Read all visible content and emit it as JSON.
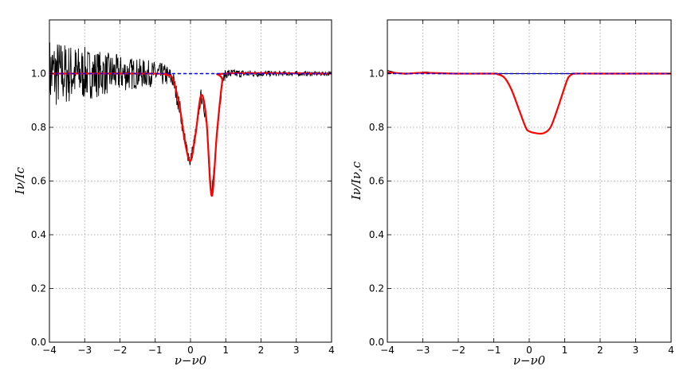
{
  "chart_data": [
    {
      "type": "line",
      "xlabel": "ν−ν0",
      "ylabel": "Iν/Ic",
      "xlim": [
        -4,
        4
      ],
      "ylim": [
        0.0,
        1.2
      ],
      "grid": true,
      "xticks": [
        "−4",
        "−3",
        "−2",
        "−1",
        "0",
        "1",
        "2",
        "3",
        "4"
      ],
      "yticks": [
        "0.0",
        "0.2",
        "0.4",
        "0.6",
        "0.8",
        "1.0"
      ],
      "series": [
        {
          "style": "noisy-black-data",
          "color": "#000000",
          "noise_model": "amplitude 0.13 at x=-4 decaying to 0.008 at x=4",
          "x": [
            -4.0,
            -3.5,
            -3.0,
            -2.5,
            -2.0,
            -1.5,
            -1.0,
            -0.7,
            -0.5,
            -0.3,
            -0.15,
            0.0,
            0.15,
            0.3,
            0.45,
            0.6,
            0.75,
            0.9,
            1.0,
            1.5,
            2.0,
            3.0,
            4.0
          ],
          "y": [
            1.0,
            1.0,
            1.0,
            1.0,
            1.0,
            1.0,
            1.0,
            0.995,
            0.98,
            0.87,
            0.74,
            0.67,
            0.78,
            0.92,
            0.83,
            0.535,
            0.78,
            0.97,
            1.0,
            1.0,
            1.0,
            1.0,
            1.0
          ]
        },
        {
          "style": "fit",
          "color": "#ff0000",
          "x": [
            -4.0,
            -1.0,
            -0.7,
            -0.5,
            -0.3,
            -0.15,
            0.0,
            0.15,
            0.3,
            0.45,
            0.6,
            0.75,
            0.9,
            1.0,
            4.0
          ],
          "y": [
            1.0,
            1.0,
            0.995,
            0.98,
            0.87,
            0.74,
            0.675,
            0.78,
            0.92,
            0.83,
            0.545,
            0.78,
            0.97,
            1.0,
            1.0
          ]
        },
        {
          "style": "continuum",
          "color": "#0000ff",
          "dashed": true,
          "x": [
            -4,
            4
          ],
          "y": [
            1.0,
            1.0
          ]
        }
      ]
    },
    {
      "type": "line",
      "xlabel": "ν−ν0",
      "ylabel": "Iν/Iν,c",
      "xlim": [
        -4,
        4
      ],
      "ylim": [
        0.0,
        1.2
      ],
      "grid": true,
      "xticks": [
        "−4",
        "−3",
        "−2",
        "−1",
        "0",
        "1",
        "2",
        "3",
        "4"
      ],
      "yticks": [
        "0.0",
        "0.2",
        "0.4",
        "0.6",
        "0.8",
        "1.0"
      ],
      "series": [
        {
          "style": "thin-black",
          "color": "#000000",
          "x": [
            -4.0,
            -3.8,
            -3.5,
            -3.2,
            -2.9,
            -2.6,
            -2.3,
            -2.0,
            -1.0,
            0.0,
            1.0,
            2.0,
            4.0
          ],
          "y": [
            1.012,
            1.005,
            0.998,
            1.002,
            1.006,
            1.0,
            1.0,
            1.0,
            1.0,
            1.0,
            1.0,
            1.0,
            1.0
          ]
        },
        {
          "style": "fit",
          "color": "#ff0000",
          "x": [
            -4.0,
            -3.5,
            -3.0,
            -2.0,
            -1.0,
            -0.9,
            -0.7,
            -0.5,
            -0.3,
            -0.1,
            0.0,
            0.2,
            0.4,
            0.6,
            0.8,
            1.0,
            1.1,
            1.2,
            1.3,
            2.0,
            4.0
          ],
          "y": [
            1.005,
            1.0,
            1.003,
            1.0,
            1.0,
            0.998,
            0.985,
            0.94,
            0.87,
            0.8,
            0.785,
            0.778,
            0.778,
            0.8,
            0.87,
            0.95,
            0.985,
            0.997,
            1.0,
            1.0,
            1.0
          ]
        },
        {
          "style": "continuum",
          "color": "#0000ff",
          "dashed": true,
          "x": [
            -4,
            4
          ],
          "y": [
            1.0,
            1.0
          ]
        }
      ]
    }
  ]
}
